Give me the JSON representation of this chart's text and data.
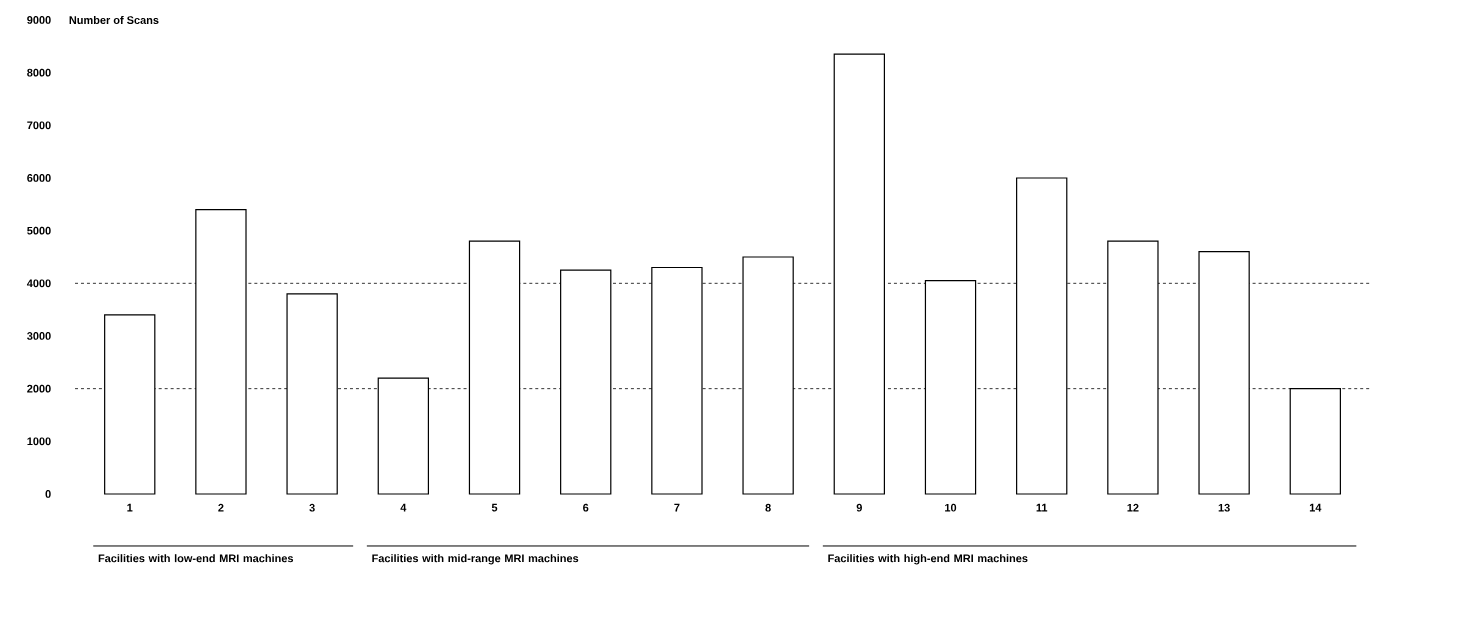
{
  "chart_data": {
    "type": "bar",
    "ylabel": "Number of Scans",
    "categories": [
      "1",
      "2",
      "3",
      "4",
      "5",
      "6",
      "7",
      "8",
      "9",
      "10",
      "11",
      "12",
      "13",
      "14"
    ],
    "values": [
      3400,
      5400,
      3800,
      2200,
      4800,
      4250,
      4300,
      4500,
      8350,
      4050,
      6000,
      4800,
      4600,
      2000
    ],
    "color": "#ffffff",
    "ylim": [
      0,
      9000
    ],
    "yticks": [
      0,
      1000,
      2000,
      3000,
      4000,
      5000,
      6000,
      7000,
      8000,
      9000
    ],
    "ref_lines": [
      {
        "axis": "y",
        "value": 4000,
        "line_style": "dashed",
        "color": "#000000"
      },
      {
        "axis": "y",
        "value": 2000,
        "line_style": "dashed",
        "color": "#000000"
      }
    ],
    "annotations": [
      "Facilities with low-end MRI machines",
      "Facilities with mid-range MRI machines",
      "Facilities with high-end MRI machines"
    ],
    "grid": false
  }
}
